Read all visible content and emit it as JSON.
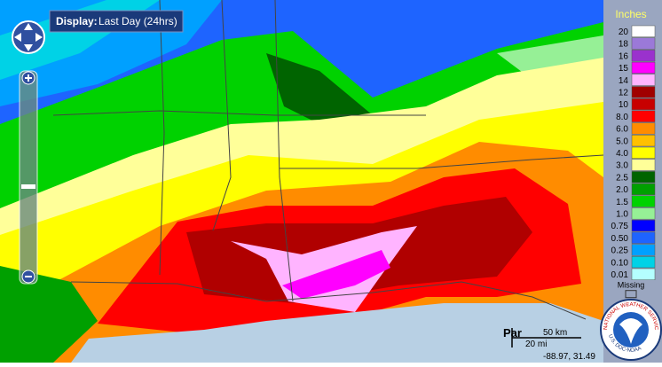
{
  "display": {
    "label": "Display:",
    "value": "Last Day (24hrs)"
  },
  "legend": {
    "title": "Inches",
    "items": [
      {
        "label": "20",
        "color": "#ffffff"
      },
      {
        "label": "18",
        "color": "#9b79d8"
      },
      {
        "label": "16",
        "color": "#9a32cd"
      },
      {
        "label": "15",
        "color": "#ff00ff"
      },
      {
        "label": "14",
        "color": "#ffb4ff"
      },
      {
        "label": "12",
        "color": "#a00000"
      },
      {
        "label": "10",
        "color": "#c80000"
      },
      {
        "label": "8.0",
        "color": "#ff0000"
      },
      {
        "label": "6.0",
        "color": "#ff8c00"
      },
      {
        "label": "5.0",
        "color": "#ffc000"
      },
      {
        "label": "4.0",
        "color": "#ffff00"
      },
      {
        "label": "3.0",
        "color": "#ffff99"
      },
      {
        "label": "2.5",
        "color": "#006400"
      },
      {
        "label": "2.0",
        "color": "#00a000"
      },
      {
        "label": "1.5",
        "color": "#00d200"
      },
      {
        "label": "1.0",
        "color": "#96f096"
      },
      {
        "label": "0.75",
        "color": "#0000ff"
      },
      {
        "label": "0.50",
        "color": "#1e64ff"
      },
      {
        "label": "0.25",
        "color": "#00a0ff"
      },
      {
        "label": "0.10",
        "color": "#00d2e6"
      },
      {
        "label": "0.01",
        "color": "#b4ffff"
      }
    ],
    "missing": "Missing"
  },
  "map": {
    "place_label": "Par",
    "scale_km": "50 km",
    "scale_mi": "20 mi",
    "coordinates": "-88.97, 31.49"
  },
  "logo": {
    "top": "NATIONAL WEATHER SERVICE",
    "bottom": "U.S. DOC-NOAA"
  }
}
